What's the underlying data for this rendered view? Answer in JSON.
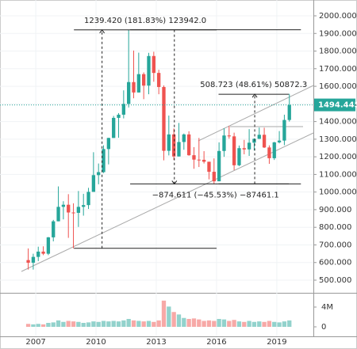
{
  "chart_data": {
    "type": "candlestick",
    "x": [
      2006.625,
      2006.875,
      2007.125,
      2007.375,
      2007.625,
      2007.875,
      2008.125,
      2008.375,
      2008.625,
      2008.875,
      2009.125,
      2009.375,
      2009.625,
      2009.875,
      2010.125,
      2010.375,
      2010.625,
      2010.875,
      2011.125,
      2011.375,
      2011.625,
      2011.875,
      2012.125,
      2012.375,
      2012.625,
      2012.875,
      2013.125,
      2013.375,
      2013.625,
      2013.875,
      2014.125,
      2014.375,
      2014.625,
      2014.875,
      2015.125,
      2015.375,
      2015.625,
      2015.875,
      2016.125,
      2016.375,
      2016.625,
      2016.875,
      2017.125,
      2017.375,
      2017.625,
      2017.875,
      2018.125,
      2018.375,
      2018.625,
      2018.875,
      2019.125,
      2019.375,
      2019.625
    ],
    "open": [
      614,
      599,
      632,
      662,
      650,
      743,
      834,
      916,
      928,
      884,
      882,
      916,
      926,
      1001,
      1096,
      1113,
      1244,
      1307,
      1421,
      1439,
      1500,
      1624,
      1565,
      1669,
      1604,
      1772,
      1676,
      1596,
      1234,
      1327,
      1202,
      1284,
      1327,
      1209,
      1184,
      1183,
      1172,
      1115,
      1061,
      1233,
      1321,
      1316,
      1152,
      1249,
      1242,
      1280,
      1302,
      1325,
      1253,
      1192,
      1282,
      1292,
      1409
    ],
    "high": [
      680,
      650,
      690,
      692,
      745,
      842,
      1032,
      948,
      988,
      936,
      1006,
      990,
      1024,
      1226,
      1162,
      1265,
      1308,
      1432,
      1448,
      1577,
      1920,
      1803,
      1791,
      1679,
      1790,
      1796,
      1694,
      1605,
      1434,
      1361,
      1392,
      1332,
      1345,
      1255,
      1307,
      1232,
      1172,
      1191,
      1282,
      1362,
      1375,
      1337,
      1264,
      1296,
      1357,
      1305,
      1366,
      1365,
      1265,
      1285,
      1346,
      1439,
      1557
    ],
    "low": [
      560,
      560,
      608,
      642,
      642,
      720,
      834,
      845,
      740,
      681,
      802,
      866,
      904,
      1001,
      1044,
      1108,
      1157,
      1307,
      1308,
      1418,
      1480,
      1532,
      1565,
      1527,
      1555,
      1626,
      1555,
      1180,
      1208,
      1182,
      1202,
      1240,
      1206,
      1132,
      1142,
      1162,
      1072,
      1046,
      1061,
      1200,
      1303,
      1124,
      1147,
      1214,
      1205,
      1236,
      1301,
      1250,
      1160,
      1182,
      1276,
      1266,
      1400
    ],
    "close": [
      599,
      632,
      662,
      650,
      743,
      834,
      916,
      928,
      884,
      882,
      916,
      926,
      1001,
      1096,
      1113,
      1244,
      1307,
      1421,
      1439,
      1500,
      1624,
      1565,
      1669,
      1604,
      1772,
      1676,
      1596,
      1234,
      1327,
      1202,
      1284,
      1327,
      1209,
      1184,
      1183,
      1172,
      1115,
      1061,
      1233,
      1321,
      1316,
      1152,
      1249,
      1242,
      1280,
      1302,
      1325,
      1253,
      1192,
      1282,
      1292,
      1409,
      1494
    ],
    "volume": [
      0.6,
      0.5,
      0.6,
      0.5,
      0.8,
      0.9,
      1.3,
      1.0,
      1.2,
      1.1,
      1.0,
      0.8,
      0.9,
      1.1,
      1.0,
      1.2,
      1.1,
      1.2,
      1.1,
      1.3,
      1.6,
      1.3,
      1.2,
      1.1,
      1.2,
      1.0,
      1.3,
      5.3,
      4.1,
      3.0,
      2.5,
      1.8,
      1.6,
      1.7,
      1.5,
      1.2,
      1.3,
      1.2,
      1.6,
      1.5,
      1.2,
      1.4,
      1.1,
      1.0,
      1.2,
      1.0,
      1.1,
      1.0,
      1.2,
      1.0,
      0.9,
      1.1,
      1.3
    ],
    "up_color": "#26a69a",
    "down_color": "#ef5350",
    "xlim": [
      2005.22,
      2020.82
    ],
    "xticks": [
      2007,
      2010,
      2013,
      2016,
      2019
    ],
    "ylim": [
      428.2,
      2089.8
    ],
    "yticks": [
      {
        "value": 500,
        "label": "500.000"
      },
      {
        "value": 600,
        "label": "600.000"
      },
      {
        "value": 700,
        "label": "700.000"
      },
      {
        "value": 800,
        "label": "800.000"
      },
      {
        "value": 900,
        "label": "900.000"
      },
      {
        "value": 1000,
        "label": "1000.000"
      },
      {
        "value": 1100,
        "label": "1100.000"
      },
      {
        "value": 1200,
        "label": "1200.000"
      },
      {
        "value": 1300,
        "label": "1300.000"
      },
      {
        "value": 1400,
        "label": "1400.000"
      },
      {
        "value": 1500,
        "label": "1500.000"
      },
      {
        "value": 1600,
        "label": "1600.000"
      },
      {
        "value": 1700,
        "label": "1700.000"
      },
      {
        "value": 1800,
        "label": "1800.000"
      },
      {
        "value": 1900,
        "label": "1900.000"
      },
      {
        "value": 2000,
        "label": "2000.000"
      }
    ],
    "volume_lim": [
      -1.92,
      6.56
    ],
    "volume_ticks": [
      0,
      {
        "value": 4,
        "label": "4M"
      }
    ],
    "last_price": 1494.445,
    "grid": true,
    "measures": [
      {
        "label": "1239.420 (181.83%) 123942.0",
        "from": 680.58,
        "to": 1920.0,
        "x_start": 2008.9,
        "x_end": 2016.0,
        "x_arrow": 2010.3
      },
      {
        "label": "−874.611 (−45.53%) −87461.1",
        "from": 1920.8,
        "to": 1046.19,
        "x_start": 2011.7,
        "x_end": 2020.2,
        "x_arrow": 2013.9
      },
      {
        "label": "508.723 (48.61%) 50872.3",
        "from": 1046.19,
        "to": 1554.91,
        "x_start": 2016.1,
        "x_end": 2019.6,
        "x_arrow": 2017.9
      }
    ]
  }
}
